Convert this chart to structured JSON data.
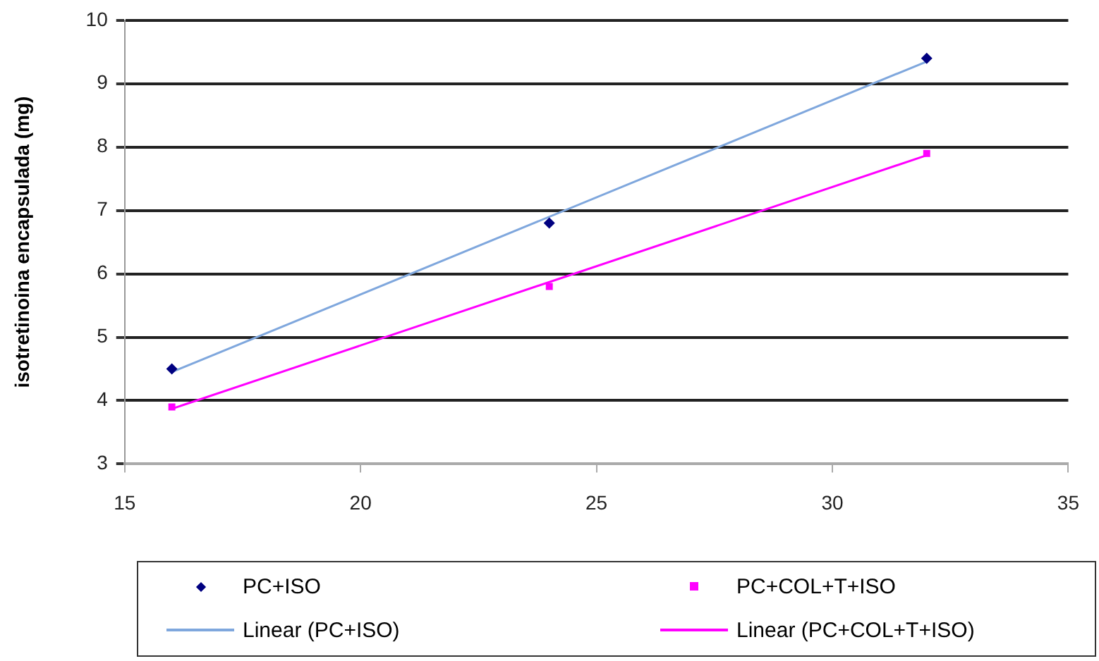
{
  "chart_data": {
    "type": "scatter",
    "ylabel": "isotretinoina encapsulada (mg)",
    "xlim": [
      15,
      35
    ],
    "xticks": [
      15,
      20,
      25,
      30,
      35
    ],
    "ylim": [
      3,
      10
    ],
    "yticks": [
      3,
      4,
      5,
      6,
      7,
      8,
      9,
      10
    ],
    "grid": "y",
    "legend": "bottom",
    "series": [
      {
        "name": "PC+ISO",
        "marker": "diamond",
        "color": "#000080",
        "x": [
          16,
          24,
          32
        ],
        "values": [
          4.5,
          6.8,
          9.4
        ]
      },
      {
        "name": "PC+COL+T+ISO",
        "marker": "square",
        "color": "#ff00ff",
        "x": [
          16,
          24,
          32
        ],
        "values": [
          3.9,
          5.8,
          7.9
        ]
      },
      {
        "name": "Linear (PC+ISO)",
        "type": "line",
        "marker": "none",
        "color": "#7fa7dd",
        "x": [
          16,
          32
        ],
        "values": [
          4.45,
          9.35
        ]
      },
      {
        "name": "Linear (PC+COL+T+ISO)",
        "type": "line",
        "marker": "none",
        "color": "#ff00ff",
        "x": [
          16,
          32
        ],
        "values": [
          3.87,
          7.87
        ]
      }
    ]
  }
}
